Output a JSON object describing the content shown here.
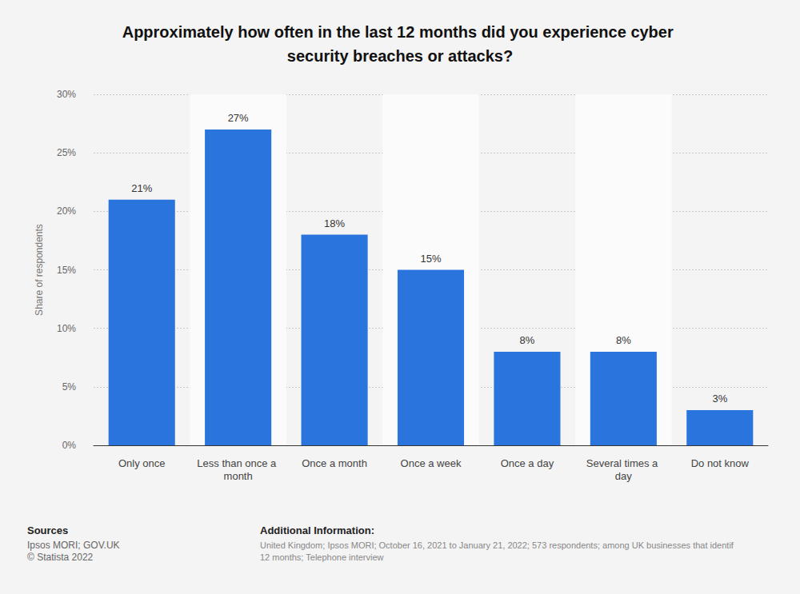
{
  "chart_data": {
    "type": "bar",
    "title": "Approximately how often in the last 12 months did you experience cyber security breaches or attacks?",
    "y_label": "Share of respondents",
    "categories": [
      "Only once",
      "Less than once a month",
      "Once a month",
      "Once a week",
      "Once a day",
      "Several times a day",
      "Do not know"
    ],
    "values": [
      21,
      27,
      18,
      15,
      8,
      8,
      3
    ],
    "value_labels": [
      "21%",
      "27%",
      "18%",
      "15%",
      "8%",
      "8%",
      "3%"
    ],
    "data_labels": true,
    "color": "#2a75dd",
    "ylim": [
      0,
      30
    ],
    "yticks": [
      {
        "value": 0,
        "label": "0%"
      },
      {
        "value": 5,
        "label": "5%"
      },
      {
        "value": 10,
        "label": "10%"
      },
      {
        "value": 15,
        "label": "15%"
      },
      {
        "value": 20,
        "label": "20%"
      },
      {
        "value": 25,
        "label": "25%"
      },
      {
        "value": 30,
        "label": "30%"
      }
    ],
    "grid": true,
    "sources_title": "Sources",
    "sources": [
      "Ipsos MORI; GOV.UK",
      "© Statista 2022"
    ],
    "notes_title": "Additional Information:",
    "notes": [
      "United Kingdom; Ipsos MORI; October 16, 2021 to January 21, 2022; 573 respondents; among UK businesses that identif",
      "12 months; Telephone interview"
    ]
  }
}
